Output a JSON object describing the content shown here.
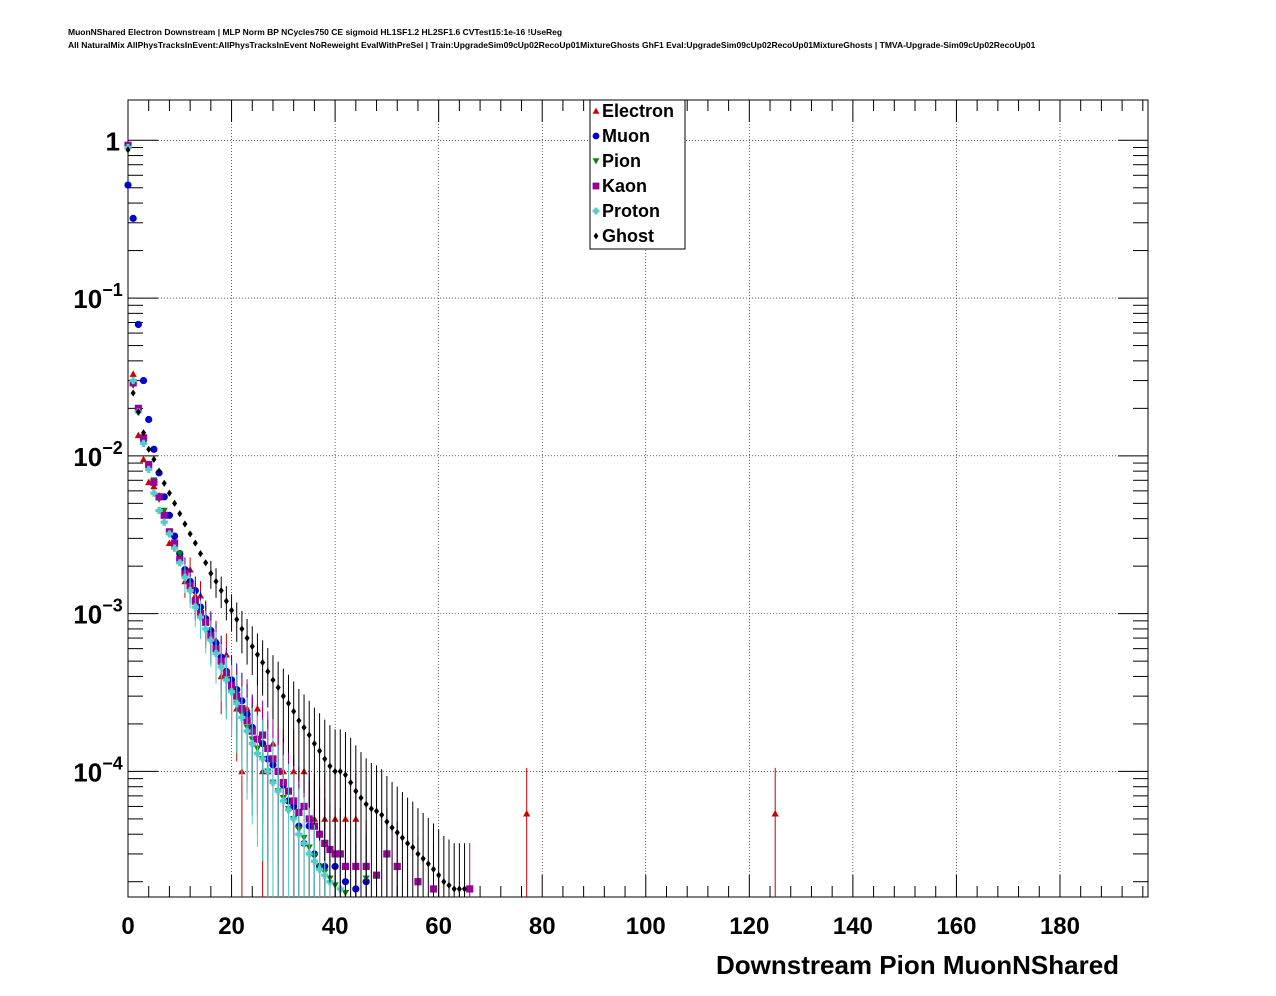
{
  "chart_data": {
    "type": "scatter",
    "title_lines": [
      "MuonNShared Electron Downstream | MLP Norm BP NCycles750 CE sigmoid HL1SF1.2 HL2SF1.6 CVTest15:1e-16 !UseReg",
      "All NaturalMix AllPhysTracksInEvent:AllPhysTracksInEvent NoReweight EvalWithPreSel | Train:UpgradeSim09cUp02RecoUp01MixtureGhosts GhF1 Eval:UpgradeSim09cUp02RecoUp01MixtureGhosts | TMVA-Upgrade-Sim09cUp02RecoUp01"
    ],
    "xlabel": "Downstream Pion MuonNShared",
    "ylabel": "",
    "x_range": [
      0,
      197
    ],
    "y_range": [
      1.6e-05,
      1.8
    ],
    "y_scale": "log",
    "grid": true,
    "legend_position": "top-center",
    "x_ticks": [
      "0",
      "20",
      "40",
      "60",
      "80",
      "100",
      "120",
      "140",
      "160",
      "180"
    ],
    "y_ticks": [
      {
        "mantissa": "1",
        "exp": ""
      },
      {
        "mantissa": "10",
        "exp": "−1"
      },
      {
        "mantissa": "10",
        "exp": "−2"
      },
      {
        "mantissa": "10",
        "exp": "−3"
      },
      {
        "mantissa": "10",
        "exp": "−4"
      }
    ],
    "series": [
      {
        "name": "Electron",
        "color": "#cc0000",
        "marker": "triangle-up",
        "points": [
          [
            0,
            0.92
          ],
          [
            1,
            0.033
          ],
          [
            2,
            0.0135
          ],
          [
            3,
            0.0095
          ],
          [
            4,
            0.0068
          ],
          [
            5,
            0.0064
          ],
          [
            6,
            0.0056
          ],
          [
            7,
            0.0042
          ],
          [
            8,
            0.0028
          ],
          [
            9,
            0.0028
          ],
          [
            10,
            0.0022
          ],
          [
            11,
            0.0016
          ],
          [
            12,
            0.0019
          ],
          [
            13,
            0.0013
          ],
          [
            14,
            0.0013
          ],
          [
            15,
            0.00095
          ],
          [
            16,
            0.0008
          ],
          [
            17,
            0.00068
          ],
          [
            18,
            0.0004
          ],
          [
            19,
            0.00055
          ],
          [
            20,
            0.00035
          ],
          [
            21,
            0.00025
          ],
          [
            22,
            0.0001
          ],
          [
            23,
            0.00025
          ],
          [
            24,
            0.00018
          ],
          [
            25,
            0.00025
          ],
          [
            26,
            0.0001
          ],
          [
            27,
            0.0001
          ],
          [
            28,
            0.00015
          ],
          [
            29,
            0.0001
          ],
          [
            30,
            0.0001
          ],
          [
            32,
            0.0001
          ],
          [
            34,
            0.0001
          ],
          [
            36,
            5e-05
          ],
          [
            38,
            5e-05
          ],
          [
            40,
            5e-05
          ],
          [
            42,
            5e-05
          ],
          [
            44,
            5e-05
          ],
          [
            77,
            5.4e-05
          ],
          [
            125,
            5.4e-05
          ]
        ]
      },
      {
        "name": "Muon",
        "color": "#0000cc",
        "marker": "circle",
        "points": [
          [
            0,
            0.52
          ],
          [
            1,
            0.32
          ],
          [
            2,
            0.068
          ],
          [
            3,
            0.03
          ],
          [
            4,
            0.017
          ],
          [
            5,
            0.011
          ],
          [
            6,
            0.0078
          ],
          [
            7,
            0.0055
          ],
          [
            8,
            0.0042
          ],
          [
            9,
            0.0031
          ],
          [
            10,
            0.0024
          ],
          [
            11,
            0.0019
          ],
          [
            12,
            0.0016
          ],
          [
            13,
            0.0014
          ],
          [
            14,
            0.0011
          ],
          [
            15,
            0.00093
          ],
          [
            16,
            0.00078
          ],
          [
            17,
            0.00065
          ],
          [
            18,
            0.00053
          ],
          [
            19,
            0.00043
          ],
          [
            20,
            0.00038
          ],
          [
            21,
            0.00033
          ],
          [
            22,
            0.00028
          ],
          [
            23,
            0.00023
          ],
          [
            24,
            0.00019
          ],
          [
            25,
            0.00016
          ],
          [
            26,
            0.00015
          ],
          [
            27,
            0.00012
          ],
          [
            28,
            0.00011
          ],
          [
            29,
            0.0001
          ],
          [
            30,
            8.2e-05
          ],
          [
            31,
            6.5e-05
          ],
          [
            32,
            6e-05
          ],
          [
            33,
            4.5e-05
          ],
          [
            34,
            3.5e-05
          ],
          [
            35,
            4.5e-05
          ],
          [
            36,
            3e-05
          ],
          [
            37,
            2.5e-05
          ],
          [
            38,
            2.5e-05
          ],
          [
            40,
            2.5e-05
          ],
          [
            42,
            2e-05
          ],
          [
            44,
            1.8e-05
          ],
          [
            46,
            2e-05
          ]
        ]
      },
      {
        "name": "Pion",
        "color": "#008800",
        "marker": "triangle-down",
        "points": [
          [
            0,
            0.9
          ],
          [
            1,
            0.028
          ],
          [
            2,
            0.019
          ],
          [
            3,
            0.012
          ],
          [
            4,
            0.0085
          ],
          [
            5,
            0.007
          ],
          [
            6,
            0.0053
          ],
          [
            7,
            0.0045
          ],
          [
            8,
            0.0032
          ],
          [
            9,
            0.0028
          ],
          [
            10,
            0.0024
          ],
          [
            11,
            0.0018
          ],
          [
            12,
            0.0015
          ],
          [
            13,
            0.0012
          ],
          [
            14,
            0.001
          ],
          [
            15,
            0.00085
          ],
          [
            16,
            0.0007
          ],
          [
            17,
            0.00058
          ],
          [
            18,
            0.00047
          ],
          [
            19,
            0.00038
          ],
          [
            20,
            0.00032
          ],
          [
            21,
            0.00027
          ],
          [
            22,
            0.00023
          ],
          [
            23,
            0.00019
          ],
          [
            24,
            0.00016
          ],
          [
            25,
            0.00014
          ],
          [
            26,
            0.00012
          ],
          [
            27,
            0.0001
          ],
          [
            28,
            8.5e-05
          ],
          [
            29,
            7.5e-05
          ],
          [
            30,
            6.8e-05
          ],
          [
            31,
            5.8e-05
          ],
          [
            32,
            5e-05
          ],
          [
            33,
            4.3e-05
          ],
          [
            34,
            3.8e-05
          ],
          [
            35,
            3.3e-05
          ],
          [
            36,
            2.9e-05
          ],
          [
            37,
            2.5e-05
          ],
          [
            38,
            2.3e-05
          ],
          [
            39,
            2.1e-05
          ],
          [
            40,
            1.9e-05
          ],
          [
            42,
            1.7e-05
          ],
          [
            46,
            2.1e-05
          ]
        ]
      },
      {
        "name": "Kaon",
        "color": "#990099",
        "marker": "square",
        "points": [
          [
            0,
            0.93
          ],
          [
            1,
            0.029
          ],
          [
            2,
            0.02
          ],
          [
            3,
            0.013
          ],
          [
            4,
            0.0088
          ],
          [
            5,
            0.0068
          ],
          [
            6,
            0.0055
          ],
          [
            7,
            0.0042
          ],
          [
            8,
            0.0033
          ],
          [
            9,
            0.0028
          ],
          [
            10,
            0.0022
          ],
          [
            11,
            0.0018
          ],
          [
            12,
            0.0015
          ],
          [
            13,
            0.0012
          ],
          [
            14,
            0.001
          ],
          [
            15,
            0.00088
          ],
          [
            16,
            0.00072
          ],
          [
            17,
            0.0006
          ],
          [
            18,
            0.0005
          ],
          [
            19,
            0.00042
          ],
          [
            20,
            0.00035
          ],
          [
            21,
            0.0003
          ],
          [
            22,
            0.00025
          ],
          [
            23,
            0.00021
          ],
          [
            24,
            0.00018
          ],
          [
            25,
            0.00016
          ],
          [
            26,
            0.00017
          ],
          [
            27,
            0.00014
          ],
          [
            28,
            0.00012
          ],
          [
            29,
            0.0001
          ],
          [
            30,
            8.5e-05
          ],
          [
            31,
            7.5e-05
          ],
          [
            32,
            6.5e-05
          ],
          [
            33,
            5.5e-05
          ],
          [
            34,
            6e-05
          ],
          [
            35,
            5e-05
          ],
          [
            36,
            4.5e-05
          ],
          [
            37,
            4e-05
          ],
          [
            38,
            3.5e-05
          ],
          [
            39,
            3.2e-05
          ],
          [
            40,
            3e-05
          ],
          [
            41,
            3e-05
          ],
          [
            42,
            2.5e-05
          ],
          [
            44,
            2.5e-05
          ],
          [
            46,
            2.5e-05
          ],
          [
            48,
            2.2e-05
          ],
          [
            50,
            3e-05
          ],
          [
            52,
            2.5e-05
          ],
          [
            56,
            2e-05
          ],
          [
            59,
            1.8e-05
          ],
          [
            66,
            1.8e-05
          ]
        ]
      },
      {
        "name": "Proton",
        "color": "#55cccc",
        "marker": "cross",
        "points": [
          [
            0,
            0.9
          ],
          [
            1,
            0.03
          ],
          [
            2,
            0.019
          ],
          [
            3,
            0.012
          ],
          [
            4,
            0.0082
          ],
          [
            5,
            0.0058
          ],
          [
            6,
            0.0045
          ],
          [
            7,
            0.0038
          ],
          [
            8,
            0.0032
          ],
          [
            9,
            0.0026
          ],
          [
            10,
            0.0021
          ],
          [
            11,
            0.0017
          ],
          [
            12,
            0.0014
          ],
          [
            13,
            0.0011
          ],
          [
            14,
            0.00095
          ],
          [
            15,
            0.0008
          ],
          [
            16,
            0.00068
          ],
          [
            17,
            0.00056
          ],
          [
            18,
            0.00046
          ],
          [
            19,
            0.00038
          ],
          [
            20,
            0.00032
          ],
          [
            21,
            0.00027
          ],
          [
            22,
            0.00022
          ],
          [
            23,
            0.00018
          ],
          [
            24,
            0.00015
          ],
          [
            25,
            0.00013
          ],
          [
            26,
            0.00012
          ],
          [
            27,
            0.0001
          ],
          [
            28,
            8.5e-05
          ],
          [
            29,
            7.5e-05
          ],
          [
            30,
            6.5e-05
          ],
          [
            31,
            5.7e-05
          ],
          [
            32,
            5e-05
          ],
          [
            33,
            4e-05
          ],
          [
            34,
            3.5e-05
          ],
          [
            35,
            3e-05
          ],
          [
            36,
            2.7e-05
          ],
          [
            37,
            2.4e-05
          ],
          [
            38,
            2.2e-05
          ],
          [
            39,
            2e-05
          ],
          [
            41,
            1.8e-05
          ]
        ]
      },
      {
        "name": "Ghost",
        "color": "#000000",
        "marker": "diamond",
        "points": [
          [
            0,
            0.87
          ],
          [
            1,
            0.025
          ],
          [
            2,
            0.019
          ],
          [
            3,
            0.014
          ],
          [
            4,
            0.011
          ],
          [
            5,
            0.0095
          ],
          [
            6,
            0.008
          ],
          [
            7,
            0.0067
          ],
          [
            8,
            0.0058
          ],
          [
            9,
            0.005
          ],
          [
            10,
            0.0043
          ],
          [
            11,
            0.0037
          ],
          [
            12,
            0.0032
          ],
          [
            13,
            0.0028
          ],
          [
            14,
            0.0024
          ],
          [
            15,
            0.0021
          ],
          [
            16,
            0.0018
          ],
          [
            17,
            0.0016
          ],
          [
            18,
            0.0014
          ],
          [
            19,
            0.0012
          ],
          [
            20,
            0.00105
          ],
          [
            21,
            0.00092
          ],
          [
            22,
            0.0008
          ],
          [
            23,
            0.0007
          ],
          [
            24,
            0.00062
          ],
          [
            25,
            0.00055
          ],
          [
            26,
            0.00049
          ],
          [
            27,
            0.00043
          ],
          [
            28,
            0.00038
          ],
          [
            29,
            0.00034
          ],
          [
            30,
            0.0003
          ],
          [
            31,
            0.00027
          ],
          [
            32,
            0.00024
          ],
          [
            33,
            0.00021
          ],
          [
            34,
            0.00019
          ],
          [
            35,
            0.00017
          ],
          [
            36,
            0.00015
          ],
          [
            37,
            0.000135
          ],
          [
            38,
            0.00012
          ],
          [
            39,
            0.000108
          ],
          [
            40,
            0.0001
          ],
          [
            41,
            0.0001
          ],
          [
            42,
            9.5e-05
          ],
          [
            43,
            8.5e-05
          ],
          [
            44,
            7.5e-05
          ],
          [
            45,
            6.8e-05
          ],
          [
            46,
            6.2e-05
          ],
          [
            47,
            5.8e-05
          ],
          [
            48,
            5.6e-05
          ],
          [
            49,
            5.3e-05
          ],
          [
            50,
            4.8e-05
          ],
          [
            51,
            4.4e-05
          ],
          [
            52,
            4.1e-05
          ],
          [
            53,
            3.8e-05
          ],
          [
            54,
            3.5e-05
          ],
          [
            55,
            3.3e-05
          ],
          [
            56,
            3e-05
          ],
          [
            57,
            2.8e-05
          ],
          [
            58,
            2.6e-05
          ],
          [
            59,
            2.4e-05
          ],
          [
            60,
            2.2e-05
          ],
          [
            61,
            2e-05
          ],
          [
            62,
            1.9e-05
          ],
          [
            63,
            1.8e-05
          ],
          [
            64,
            1.8e-05
          ],
          [
            65,
            1.8e-05
          ]
        ]
      }
    ]
  }
}
